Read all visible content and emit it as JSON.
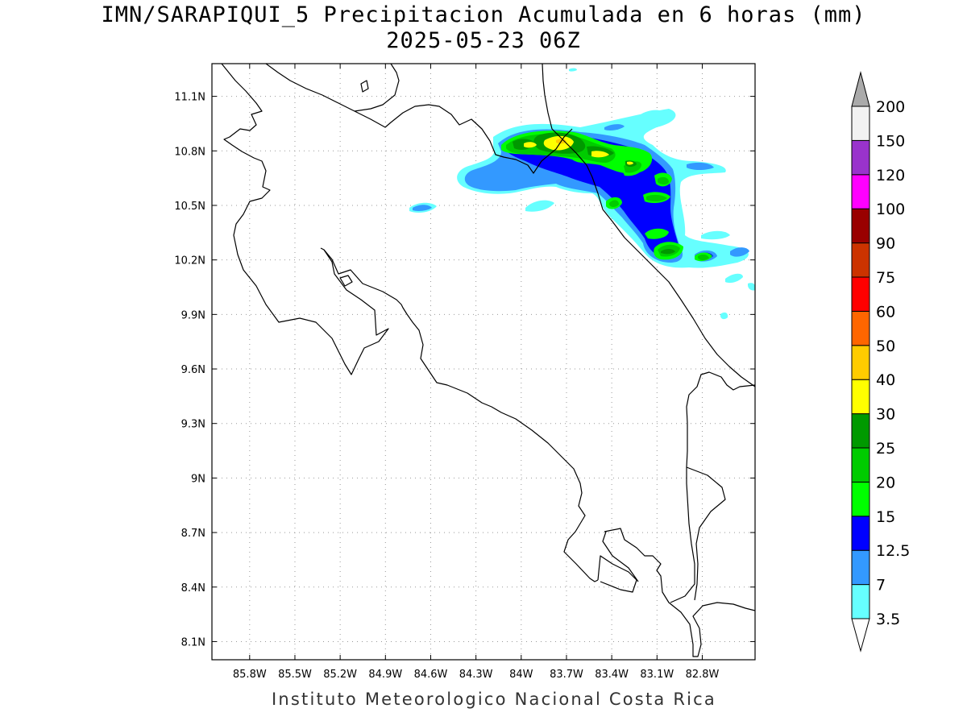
{
  "title": {
    "line1": "IMN/SARAPIQUI_5 Precipitacion Acumulada en 6 horas (mm)",
    "line2": "2025-05-23 06Z"
  },
  "credit": "Instituto Meteorologico Nacional Costa Rica",
  "map": {
    "lon_range": [
      -86.05,
      -82.45
    ],
    "lat_range": [
      8.0,
      11.28
    ],
    "lon_ticks": [
      {
        "value": -85.8,
        "label": "85.8W"
      },
      {
        "value": -85.5,
        "label": "85.5W"
      },
      {
        "value": -85.2,
        "label": "85.2W"
      },
      {
        "value": -84.9,
        "label": "84.9W"
      },
      {
        "value": -84.6,
        "label": "84.6W"
      },
      {
        "value": -84.3,
        "label": "84.3W"
      },
      {
        "value": -84.0,
        "label": "84W"
      },
      {
        "value": -83.7,
        "label": "83.7W"
      },
      {
        "value": -83.4,
        "label": "83.4W"
      },
      {
        "value": -83.1,
        "label": "83.1W"
      },
      {
        "value": -82.8,
        "label": "82.8W"
      }
    ],
    "lat_ticks": [
      {
        "value": 11.1,
        "label": "11.1N"
      },
      {
        "value": 10.8,
        "label": "10.8N"
      },
      {
        "value": 10.5,
        "label": "10.5N"
      },
      {
        "value": 10.2,
        "label": "10.2N"
      },
      {
        "value": 9.9,
        "label": "9.9N"
      },
      {
        "value": 9.6,
        "label": "9.6N"
      },
      {
        "value": 9.3,
        "label": "9.3N"
      },
      {
        "value": 9.0,
        "label": "9N"
      },
      {
        "value": 8.7,
        "label": "8.7N"
      },
      {
        "value": 8.4,
        "label": "8.4N"
      },
      {
        "value": 8.1,
        "label": "8.1N"
      }
    ],
    "grid": true
  },
  "colorbar": {
    "levels": [
      {
        "label": "3.5",
        "color": "#66ffff"
      },
      {
        "label": "7",
        "color": "#3399ff"
      },
      {
        "label": "12.5",
        "color": "#0000ff"
      },
      {
        "label": "15",
        "color": "#00ff00"
      },
      {
        "label": "20",
        "color": "#00cc00"
      },
      {
        "label": "25",
        "color": "#009900"
      },
      {
        "label": "30",
        "color": "#ffff00"
      },
      {
        "label": "40",
        "color": "#ffcc00"
      },
      {
        "label": "50",
        "color": "#ff6600"
      },
      {
        "label": "60",
        "color": "#ff0000"
      },
      {
        "label": "75",
        "color": "#cc3300"
      },
      {
        "label": "90",
        "color": "#990000"
      },
      {
        "label": "100",
        "color": "#ff00ff"
      },
      {
        "label": "120",
        "color": "#9933cc"
      },
      {
        "label": "150",
        "color": "#f2f2f2"
      },
      {
        "label": "200",
        "color": "#aaaaaa"
      }
    ]
  }
}
